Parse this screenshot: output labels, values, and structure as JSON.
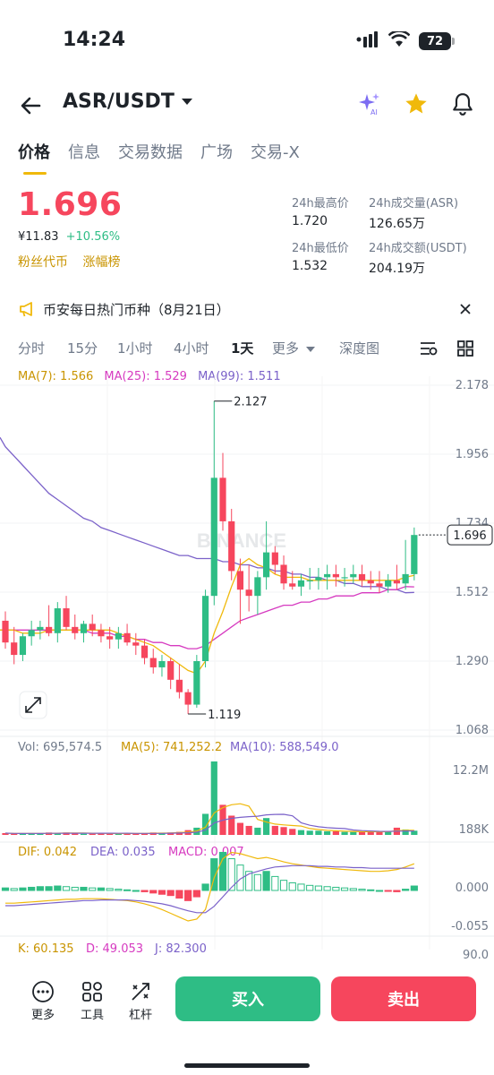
{
  "status": {
    "time": "14:24",
    "battery": "72"
  },
  "header": {
    "pair": "ASR/USDT"
  },
  "tabs": [
    "价格",
    "信息",
    "交易数据",
    "广场",
    "交易-X"
  ],
  "price": {
    "last": "1.696",
    "fiat": "¥11.83",
    "change": "+10.56%",
    "tags": [
      "粉丝代币",
      "涨幅榜"
    ]
  },
  "stats": {
    "high_label": "24h最高价",
    "high": "1.720",
    "vol_label": "24h成交量(ASR)",
    "vol": "126.65万",
    "low_label": "24h最低价",
    "low": "1.532",
    "turnover_label": "24h成交额(USDT)",
    "turnover": "204.19万"
  },
  "notice": {
    "text": "币安每日热门币种（8月21日）"
  },
  "intervals": [
    "分时",
    "15分",
    "1小时",
    "4小时",
    "1天",
    "更多",
    "深度图"
  ],
  "ma_legend": {
    "ma7": "MA(7): 1.566",
    "ma25": "MA(25): 1.529",
    "ma99": "MA(99): 1.511"
  },
  "price_axis": [
    "2.178",
    "1.956",
    "1.734",
    "1.512",
    "1.290",
    "1.068"
  ],
  "price_tag": "1.696",
  "markers": {
    "high": "2.127",
    "low": "1.119"
  },
  "watermark": "BINANCE",
  "volume_legend": {
    "vol": "Vol: 695,574.5",
    "ma5": "MA(5): 741,252.2",
    "ma10": "MA(10): 588,549.0"
  },
  "volume_axis": [
    "12.2M",
    "188K"
  ],
  "macd_legend": {
    "dif": "DIF: 0.042",
    "dea": "DEA: 0.035",
    "macd": "MACD: 0.007"
  },
  "macd_axis": [
    "0.000",
    "-0.055"
  ],
  "kdj_legend": {
    "k": "K: 60.135",
    "d": "D: 49.053",
    "j": "J: 82.300"
  },
  "kdj_axis": [
    "90.0"
  ],
  "bottom": {
    "more": "更多",
    "tools": "工具",
    "leverage": "杠杆",
    "buy": "买入",
    "sell": "卖出"
  },
  "colors": {
    "up": "#2ebd85",
    "down": "#f6465d",
    "ma7": "#f0b90b",
    "ma25": "#d63ac0",
    "ma99": "#7b62c9"
  },
  "chart_data": {
    "type": "candlestick",
    "interval": "1天",
    "price_range": [
      1.068,
      2.178
    ],
    "candles": [
      [
        1.42,
        1.45,
        1.33,
        1.35
      ],
      [
        1.35,
        1.4,
        1.28,
        1.31
      ],
      [
        1.31,
        1.38,
        1.29,
        1.37
      ],
      [
        1.37,
        1.42,
        1.34,
        1.39
      ],
      [
        1.39,
        1.42,
        1.36,
        1.4
      ],
      [
        1.4,
        1.47,
        1.37,
        1.38
      ],
      [
        1.38,
        1.48,
        1.35,
        1.46
      ],
      [
        1.46,
        1.5,
        1.39,
        1.4
      ],
      [
        1.4,
        1.44,
        1.36,
        1.38
      ],
      [
        1.38,
        1.42,
        1.35,
        1.41
      ],
      [
        1.41,
        1.44,
        1.37,
        1.39
      ],
      [
        1.39,
        1.41,
        1.35,
        1.37
      ],
      [
        1.37,
        1.4,
        1.33,
        1.36
      ],
      [
        1.36,
        1.4,
        1.33,
        1.38
      ],
      [
        1.38,
        1.41,
        1.34,
        1.35
      ],
      [
        1.35,
        1.38,
        1.31,
        1.34
      ],
      [
        1.34,
        1.36,
        1.28,
        1.3
      ],
      [
        1.3,
        1.33,
        1.25,
        1.27
      ],
      [
        1.27,
        1.31,
        1.24,
        1.29
      ],
      [
        1.29,
        1.3,
        1.2,
        1.23
      ],
      [
        1.23,
        1.28,
        1.17,
        1.19
      ],
      [
        1.19,
        1.2,
        1.12,
        1.15
      ],
      [
        1.15,
        1.31,
        1.14,
        1.29
      ],
      [
        1.29,
        1.52,
        1.27,
        1.5
      ],
      [
        1.5,
        2.127,
        1.47,
        1.88
      ],
      [
        1.88,
        1.96,
        1.71,
        1.74
      ],
      [
        1.74,
        1.78,
        1.55,
        1.58
      ],
      [
        1.58,
        1.62,
        1.41,
        1.52
      ],
      [
        1.52,
        1.6,
        1.45,
        1.5
      ],
      [
        1.5,
        1.58,
        1.44,
        1.56
      ],
      [
        1.56,
        1.74,
        1.52,
        1.64
      ],
      [
        1.64,
        1.66,
        1.57,
        1.6
      ],
      [
        1.6,
        1.63,
        1.52,
        1.54
      ],
      [
        1.54,
        1.58,
        1.52,
        1.53
      ],
      [
        1.53,
        1.57,
        1.5,
        1.55
      ],
      [
        1.55,
        1.59,
        1.52,
        1.55
      ],
      [
        1.55,
        1.59,
        1.52,
        1.56
      ],
      [
        1.56,
        1.6,
        1.52,
        1.57
      ],
      [
        1.57,
        1.6,
        1.53,
        1.56
      ],
      [
        1.56,
        1.59,
        1.53,
        1.56
      ],
      [
        1.56,
        1.6,
        1.54,
        1.57
      ],
      [
        1.57,
        1.6,
        1.53,
        1.55
      ],
      [
        1.55,
        1.58,
        1.52,
        1.54
      ],
      [
        1.54,
        1.58,
        1.51,
        1.53
      ],
      [
        1.53,
        1.57,
        1.51,
        1.55
      ],
      [
        1.55,
        1.6,
        1.52,
        1.54
      ],
      [
        1.54,
        1.68,
        1.52,
        1.57
      ],
      [
        1.57,
        1.72,
        1.55,
        1.696
      ]
    ],
    "ma7": [
      1.39,
      1.39,
      1.38,
      1.38,
      1.38,
      1.39,
      1.39,
      1.39,
      1.39,
      1.39,
      1.39,
      1.39,
      1.39,
      1.38,
      1.37,
      1.36,
      1.35,
      1.34,
      1.32,
      1.3,
      1.28,
      1.26,
      1.25,
      1.29,
      1.38,
      1.45,
      1.53,
      1.6,
      1.62,
      1.6,
      1.59,
      1.57,
      1.56,
      1.56,
      1.56,
      1.55,
      1.55,
      1.55,
      1.55,
      1.55,
      1.55,
      1.55,
      1.55,
      1.55,
      1.55,
      1.55,
      1.56,
      1.566
    ],
    "ma25": [
      1.39,
      1.39,
      1.39,
      1.39,
      1.39,
      1.39,
      1.39,
      1.39,
      1.39,
      1.39,
      1.38,
      1.38,
      1.38,
      1.37,
      1.37,
      1.36,
      1.36,
      1.35,
      1.35,
      1.34,
      1.34,
      1.33,
      1.33,
      1.34,
      1.36,
      1.38,
      1.4,
      1.42,
      1.43,
      1.44,
      1.45,
      1.46,
      1.47,
      1.47,
      1.48,
      1.48,
      1.49,
      1.49,
      1.5,
      1.5,
      1.5,
      1.51,
      1.51,
      1.51,
      1.52,
      1.52,
      1.53,
      1.529
    ],
    "ma99": [
      1.98,
      1.95,
      1.92,
      1.89,
      1.86,
      1.83,
      1.81,
      1.79,
      1.77,
      1.75,
      1.74,
      1.72,
      1.71,
      1.7,
      1.69,
      1.68,
      1.67,
      1.66,
      1.65,
      1.64,
      1.63,
      1.63,
      1.62,
      1.62,
      1.62,
      1.61,
      1.61,
      1.6,
      1.6,
      1.59,
      1.59,
      1.58,
      1.58,
      1.57,
      1.57,
      1.56,
      1.56,
      1.55,
      1.55,
      1.54,
      1.54,
      1.53,
      1.53,
      1.53,
      1.52,
      1.52,
      1.51,
      1.511
    ],
    "volume": [
      0.3,
      0.2,
      0.2,
      0.3,
      0.2,
      0.4,
      0.3,
      0.4,
      0.3,
      0.2,
      0.2,
      0.3,
      0.2,
      0.2,
      0.3,
      0.2,
      0.3,
      0.4,
      0.3,
      0.4,
      0.5,
      0.8,
      1.2,
      3.5,
      12.2,
      5.0,
      3.2,
      2.0,
      1.5,
      1.2,
      2.8,
      1.5,
      1.3,
      1.0,
      0.8,
      0.7,
      0.7,
      0.6,
      0.6,
      0.5,
      0.5,
      0.5,
      0.6,
      0.5,
      0.6,
      1.2,
      0.9,
      0.7
    ],
    "macd_hist": [
      0.004,
      0.003,
      0.004,
      0.005,
      0.006,
      0.006,
      0.007,
      0.006,
      0.005,
      0.005,
      0.004,
      0.004,
      0.003,
      0.002,
      0.001,
      0.0,
      -0.002,
      -0.004,
      -0.006,
      -0.008,
      -0.012,
      -0.016,
      -0.01,
      0.01,
      0.05,
      0.06,
      0.05,
      0.04,
      0.03,
      0.025,
      0.03,
      0.022,
      0.016,
      0.012,
      0.01,
      0.008,
      0.007,
      0.006,
      0.005,
      0.004,
      0.003,
      0.002,
      0.001,
      0.0,
      -0.001,
      -0.002,
      0.002,
      0.007
    ],
    "dif": [
      -0.02,
      -0.02,
      -0.019,
      -0.018,
      -0.017,
      -0.016,
      -0.015,
      -0.014,
      -0.014,
      -0.013,
      -0.013,
      -0.013,
      -0.014,
      -0.015,
      -0.016,
      -0.018,
      -0.021,
      -0.025,
      -0.03,
      -0.036,
      -0.042,
      -0.048,
      -0.045,
      -0.03,
      0.02,
      0.05,
      0.06,
      0.058,
      0.054,
      0.05,
      0.052,
      0.049,
      0.045,
      0.042,
      0.04,
      0.038,
      0.036,
      0.035,
      0.034,
      0.033,
      0.032,
      0.031,
      0.03,
      0.03,
      0.031,
      0.033,
      0.037,
      0.042
    ],
    "dea": [
      -0.024,
      -0.024,
      -0.023,
      -0.022,
      -0.021,
      -0.02,
      -0.019,
      -0.018,
      -0.017,
      -0.016,
      -0.016,
      -0.015,
      -0.015,
      -0.015,
      -0.015,
      -0.016,
      -0.017,
      -0.019,
      -0.021,
      -0.024,
      -0.028,
      -0.032,
      -0.035,
      -0.035,
      -0.025,
      -0.01,
      0.005,
      0.018,
      0.026,
      0.03,
      0.034,
      0.037,
      0.038,
      0.039,
      0.039,
      0.039,
      0.038,
      0.038,
      0.037,
      0.037,
      0.036,
      0.036,
      0.035,
      0.035,
      0.035,
      0.035,
      0.035,
      0.035
    ]
  }
}
